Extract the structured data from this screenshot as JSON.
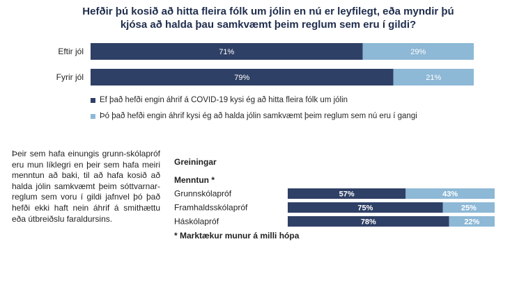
{
  "chart_data": [
    {
      "type": "bar",
      "orientation": "horizontal",
      "stacked": true,
      "title": "Hefðir þú kosið að hitta fleira fólk um jólin en nú er leyfilegt, eða myndir þú kjósa að halda þau samkvæmt þeim reglum sem eru í gildi?",
      "categories": [
        "Eftir jól",
        "Fyrir jól"
      ],
      "series": [
        {
          "name": "Ef það hefði engin áhrif á COVID-19 kysi ég að hitta fleira fólk um jólin",
          "values": [
            71,
            79
          ],
          "labels": [
            "71%",
            "79%"
          ],
          "color": "#2f4066"
        },
        {
          "name": "Þó það hefði engin áhrif kysi ég að halda jólin samkvæmt þeim reglum sem nú eru í gangi",
          "values": [
            29,
            21
          ],
          "labels": [
            "29%",
            "21%"
          ],
          "color": "#8db8d6"
        }
      ],
      "xlim": [
        0,
        100
      ],
      "legend": "bottom-left",
      "grid": false
    },
    {
      "type": "bar",
      "orientation": "horizontal",
      "stacked": true,
      "title": "Greiningar",
      "group_label": "Menntun *",
      "categories": [
        "Grunnskólapróf",
        "Framhaldsskólapróf",
        "Háskólapróf"
      ],
      "series": [
        {
          "values": [
            57,
            75,
            78
          ],
          "labels": [
            "57%",
            "75%",
            "78%"
          ],
          "color": "#2f4066"
        },
        {
          "values": [
            43,
            25,
            22
          ],
          "labels": [
            "43%",
            "25%",
            "22%"
          ],
          "color": "#8db8d6"
        }
      ],
      "xlim": [
        0,
        100
      ],
      "grid": false,
      "note": "* Marktækur munur á milli hópa"
    }
  ],
  "text": {
    "paragraph": "Þeir sem hafa einungis grunn-skólapróf eru mun líklegri en þeir sem hafa meiri menntun að baki, til að hafa kosið að halda jólin samkvæmt þeim sóttvarnar-reglum sem voru í gildi jafnvel þó það hefði ekki haft nein áhrif á smithættu eða útbreiðslu faraldursins."
  },
  "colors": {
    "dark": "#2f4066",
    "light": "#8db8d6",
    "title": "#1f2d4d"
  }
}
